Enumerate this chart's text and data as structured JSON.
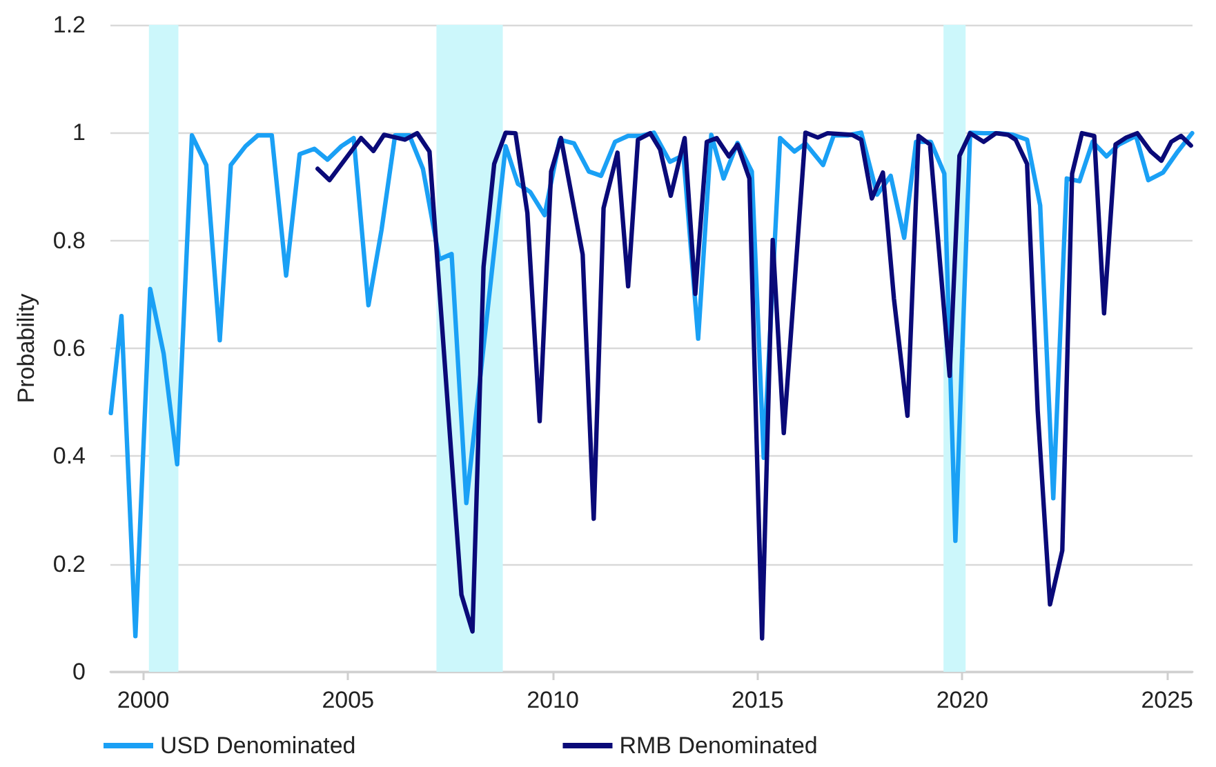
{
  "chart_data": {
    "type": "line",
    "ylabel": "Probability",
    "xlim": [
      1999.2,
      2025.62
    ],
    "xticks": [
      2000,
      2005,
      2010,
      2015,
      2020,
      2025
    ],
    "ylim": [
      0,
      1.2
    ],
    "yticks": [
      0,
      0.2,
      0.4,
      0.6,
      0.8,
      1,
      1.2
    ],
    "grid": "y",
    "legend": "bottom",
    "marker": "none",
    "line_style": "solid",
    "bands": [
      {
        "axis": "x",
        "from": 2000.14,
        "to": 2000.86,
        "color": "#ccf7fb"
      },
      {
        "axis": "x",
        "from": 2007.16,
        "to": 2008.78,
        "color": "#ccf7fb"
      },
      {
        "axis": "x",
        "from": 2019.54,
        "to": 2020.08,
        "color": "#ccf7fb"
      }
    ],
    "series": [
      {
        "name": "USD Denominated",
        "color": "#1aa0f5",
        "x": [
          1999.21,
          1999.47,
          1999.81,
          2000.17,
          2000.5,
          2000.83,
          2001.19,
          2001.54,
          2001.87,
          2002.14,
          2002.5,
          2002.8,
          2003.14,
          2003.49,
          2003.82,
          2004.18,
          2004.5,
          2004.84,
          2005.14,
          2005.5,
          2005.82,
          2006.15,
          2006.5,
          2006.83,
          2007.23,
          2007.53,
          2007.89,
          2008.85,
          2009.15,
          2009.45,
          2009.8,
          2010.17,
          2010.52,
          2010.88,
          2011.18,
          2011.52,
          2011.84,
          2012.14,
          2012.47,
          2012.86,
          2013.19,
          2013.55,
          2013.87,
          2014.17,
          2014.51,
          2014.86,
          2015.15,
          2015.55,
          2015.9,
          2016.17,
          2016.6,
          2016.86,
          2017.2,
          2017.53,
          2017.92,
          2018.25,
          2018.58,
          2018.87,
          2019.23,
          2019.56,
          2019.83,
          2020.19,
          2020.52,
          2020.88,
          2021.24,
          2021.58,
          2021.9,
          2022.22,
          2022.55,
          2022.86,
          2023.18,
          2023.52,
          2023.82,
          2024.24,
          2024.54,
          2024.9,
          2025.26,
          2025.61
        ],
        "values": [
          0.48,
          0.66,
          0.066,
          0.71,
          0.59,
          0.385,
          0.995,
          0.94,
          0.615,
          0.94,
          0.975,
          0.995,
          0.995,
          0.735,
          0.96,
          0.97,
          0.95,
          0.975,
          0.99,
          0.68,
          0.82,
          0.995,
          0.995,
          0.933,
          0.765,
          0.775,
          0.313,
          0.975,
          0.905,
          0.89,
          0.847,
          0.987,
          0.98,
          0.928,
          0.92,
          0.983,
          0.994,
          0.994,
          1.0,
          0.946,
          0.958,
          0.618,
          0.996,
          0.915,
          0.981,
          0.928,
          0.397,
          0.99,
          0.965,
          0.98,
          0.94,
          0.995,
          0.995,
          1.0,
          0.885,
          0.92,
          0.805,
          0.983,
          0.983,
          0.924,
          0.243,
          1.0,
          0.999,
          0.999,
          0.996,
          0.987,
          0.865,
          0.322,
          0.915,
          0.91,
          0.983,
          0.956,
          0.978,
          0.994,
          0.912,
          0.926,
          0.965,
          0.999
        ]
      },
      {
        "name": "RMB Denominated",
        "color": "#0a0a78",
        "x": [
          2004.26,
          2004.55,
          2005.32,
          2005.62,
          2005.88,
          2006.39,
          2006.69,
          2006.99,
          2007.77,
          2008.04,
          2008.31,
          2008.57,
          2008.85,
          2009.09,
          2009.38,
          2009.68,
          2009.96,
          2010.2,
          2010.73,
          2011.0,
          2011.24,
          2011.58,
          2011.84,
          2012.08,
          2012.38,
          2012.62,
          2012.88,
          2013.22,
          2013.48,
          2013.76,
          2014.0,
          2014.3,
          2014.51,
          2014.8,
          2015.11,
          2015.37,
          2015.64,
          2016.17,
          2016.47,
          2016.71,
          2017.31,
          2017.53,
          2017.79,
          2018.06,
          2018.33,
          2018.66,
          2018.93,
          2019.21,
          2019.69,
          2019.93,
          2020.19,
          2020.52,
          2020.82,
          2021.12,
          2021.3,
          2021.58,
          2021.84,
          2022.14,
          2022.44,
          2022.68,
          2022.92,
          2023.22,
          2023.46,
          2023.74,
          2024.0,
          2024.27,
          2024.6,
          2024.86,
          2025.1,
          2025.34,
          2025.58
        ],
        "values": [
          0.933,
          0.912,
          0.99,
          0.966,
          0.996,
          0.987,
          0.999,
          0.965,
          0.143,
          0.075,
          0.751,
          0.942,
          1.0,
          0.999,
          0.851,
          0.465,
          0.928,
          0.99,
          0.774,
          0.284,
          0.86,
          0.963,
          0.715,
          0.987,
          0.999,
          0.969,
          0.883,
          0.99,
          0.701,
          0.983,
          0.99,
          0.956,
          0.978,
          0.915,
          0.062,
          0.801,
          0.443,
          1.0,
          0.991,
          0.999,
          0.996,
          0.987,
          0.878,
          0.926,
          0.692,
          0.475,
          0.994,
          0.978,
          0.549,
          0.957,
          0.999,
          0.983,
          0.999,
          0.996,
          0.987,
          0.942,
          0.484,
          0.125,
          0.225,
          0.924,
          0.999,
          0.994,
          0.665,
          0.978,
          0.991,
          0.999,
          0.965,
          0.948,
          0.983,
          0.994,
          0.976
        ]
      }
    ]
  }
}
